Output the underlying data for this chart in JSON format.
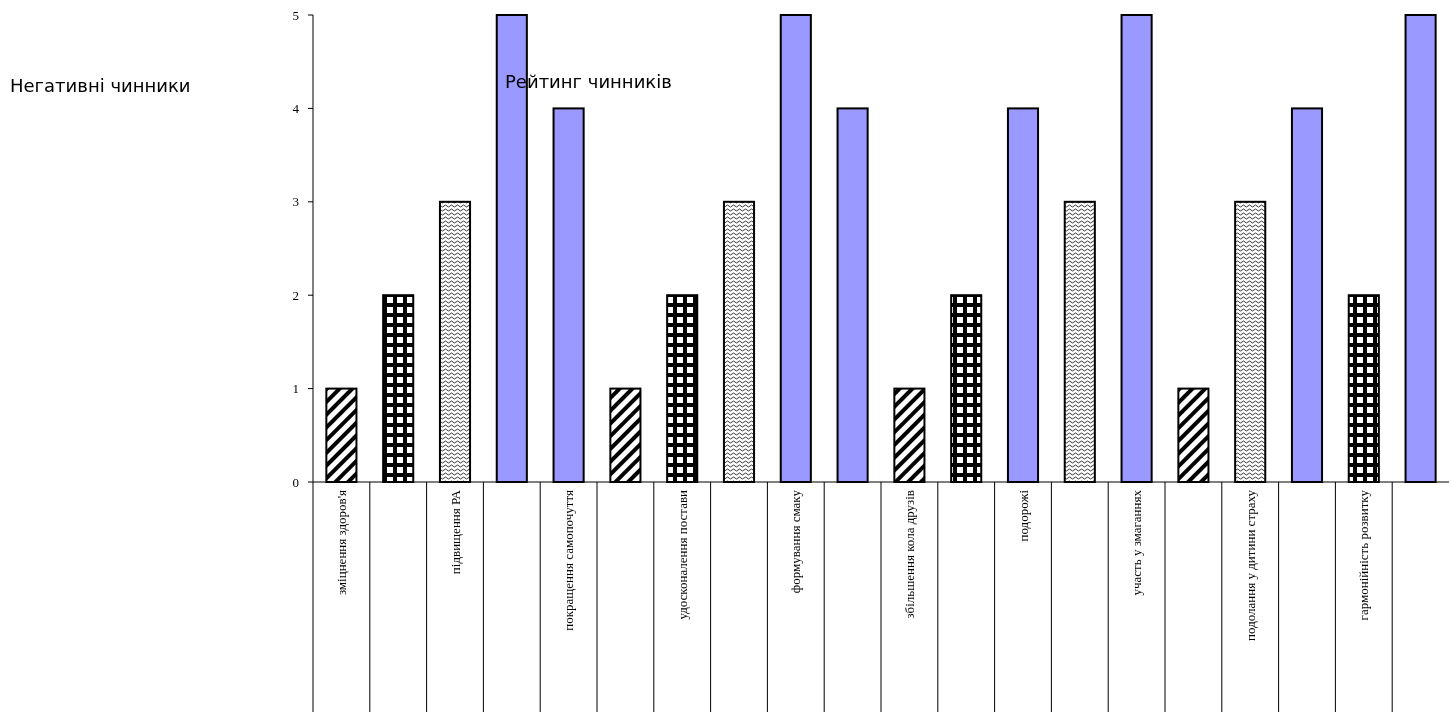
{
  "chart_data": {
    "type": "bar",
    "title": "Рейтинг чинників",
    "annotations": [
      "Негативні чинники"
    ],
    "categories": [
      "зміцнення здоров'я",
      null,
      "підвищення РА",
      null,
      "покращення самопочуття",
      null,
      "удосконалення постави",
      null,
      "формування смаку",
      null,
      "збільшення кола друзів",
      null,
      "подорожі",
      null,
      "участь у змаганнях",
      null,
      "подолання у дитини страху",
      null,
      "гармонійність розвитку",
      null
    ],
    "values": [
      1,
      2,
      3,
      5,
      4,
      1,
      2,
      3,
      5,
      4,
      1,
      2,
      4,
      3,
      5,
      1,
      3,
      4,
      2,
      5
    ],
    "colors": [
      "#000000",
      "#010101",
      "#020202",
      "#9999ff",
      "#9999ff",
      "#000000",
      "#010101",
      "#020202",
      "#9999ff",
      "#9999ff",
      "#000000",
      "#010101",
      "#9999ff",
      "#020202",
      "#9999ff",
      "#000000",
      "#020202",
      "#9999ff",
      "#010101",
      "#9999ff"
    ],
    "ylim": [
      0,
      5
    ],
    "yticks": [
      0,
      1,
      2,
      3,
      4,
      5
    ],
    "grid": false
  }
}
